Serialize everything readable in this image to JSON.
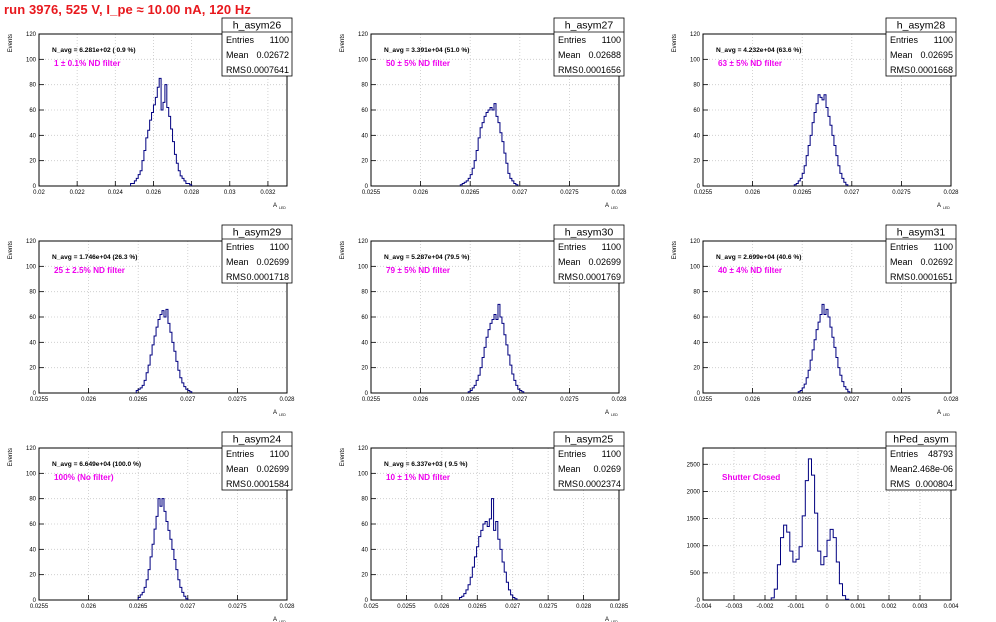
{
  "run_title": "run 3976,   525 V, I_pe ≈ 10.00 nA, 120 Hz",
  "stats_labels": {
    "entries": "Entries",
    "mean": "Mean",
    "rms": "RMS"
  },
  "colors": {
    "title": "#e8181d",
    "annotation": "#ee00ee",
    "histogram": "#000080",
    "grid": "#c8c8c8",
    "axis": "#000000"
  },
  "chart_data": [
    {
      "type": "histogram",
      "name": "h_asym26",
      "navg": "N_avg = 6.281e+02 ( 0.9 %)",
      "filter": "1 ± 0.1% ND filter",
      "entries": "1100",
      "mean": "0.02672",
      "rms": "0.0007641",
      "ylabel": "Events",
      "xlabel": "A",
      "xlabel_sub": "LED",
      "xlim": [
        0.02,
        0.033
      ],
      "ylim": [
        0,
        120
      ],
      "xticks": [
        0.02,
        0.022,
        0.024,
        0.026,
        0.028,
        0.03,
        0.032
      ],
      "xticklabels": [
        "0.02",
        "0.022",
        "0.024",
        "0.026",
        "0.028",
        "0.03",
        "0.032"
      ],
      "yticks": [
        0,
        20,
        40,
        60,
        80,
        100,
        120
      ],
      "x_start": 0.0248,
      "bin_width": 0.0001,
      "counts": [
        2,
        2,
        4,
        6,
        9,
        12,
        20,
        28,
        38,
        44,
        52,
        58,
        64,
        70,
        78,
        85,
        60,
        66,
        80,
        62,
        55,
        45,
        35,
        25,
        18,
        12,
        8,
        6,
        4,
        2,
        2,
        1
      ]
    },
    {
      "type": "histogram",
      "name": "h_asym27",
      "navg": "N_avg = 3.391e+04 (51.0 %)",
      "filter": "50 ± 5% ND filter",
      "entries": "1100",
      "mean": "0.02688",
      "rms": "0.0001656",
      "ylabel": "Events",
      "xlabel": "A",
      "xlabel_sub": "LED",
      "xlim": [
        0.0255,
        0.028
      ],
      "ylim": [
        0,
        120
      ],
      "xticks": [
        0.0255,
        0.026,
        0.0265,
        0.027,
        0.0275,
        0.028
      ],
      "xticklabels": [
        "0.0255",
        "0.026",
        "0.0265",
        "0.027",
        "0.0275",
        "0.028"
      ],
      "yticks": [
        0,
        20,
        40,
        60,
        80,
        100,
        120
      ],
      "x_start": 0.0264,
      "bin_width": 2e-05,
      "counts": [
        1,
        2,
        3,
        4,
        6,
        9,
        14,
        20,
        28,
        38,
        46,
        50,
        55,
        58,
        60,
        62,
        60,
        65,
        55,
        50,
        42,
        35,
        26,
        18,
        10,
        6,
        4,
        2,
        1
      ]
    },
    {
      "type": "histogram",
      "name": "h_asym28",
      "navg": "N_avg = 4.232e+04 (63.6 %)",
      "filter": "63 ± 5% ND filter",
      "entries": "1100",
      "mean": "0.02695",
      "rms": "0.0001668",
      "ylabel": "Events",
      "xlabel": "A",
      "xlabel_sub": "LED",
      "xlim": [
        0.0255,
        0.028
      ],
      "ylim": [
        0,
        120
      ],
      "xticks": [
        0.0255,
        0.026,
        0.0265,
        0.027,
        0.0275,
        0.028
      ],
      "xticklabels": [
        "0.0255",
        "0.026",
        "0.0265",
        "0.027",
        "0.0275",
        "0.028"
      ],
      "yticks": [
        0,
        20,
        40,
        60,
        80,
        100,
        120
      ],
      "x_start": 0.02642,
      "bin_width": 2e-05,
      "counts": [
        1,
        2,
        4,
        6,
        10,
        16,
        24,
        32,
        40,
        50,
        58,
        65,
        72,
        70,
        68,
        72,
        62,
        55,
        48,
        40,
        32,
        24,
        16,
        10,
        6,
        3,
        1
      ]
    },
    {
      "type": "histogram",
      "name": "h_asym29",
      "navg": "N_avg = 1.746e+04 (26.3 %)",
      "filter": "25 ± 2.5% ND filter",
      "entries": "1100",
      "mean": "0.02699",
      "rms": "0.0001718",
      "ylabel": "Events",
      "xlabel": "A",
      "xlabel_sub": "LED",
      "xlim": [
        0.0255,
        0.028
      ],
      "ylim": [
        0,
        120
      ],
      "xticks": [
        0.0255,
        0.026,
        0.0265,
        0.027,
        0.0275,
        0.028
      ],
      "xticklabels": [
        "0.0255",
        "0.026",
        "0.0265",
        "0.027",
        "0.0275",
        "0.028"
      ],
      "yticks": [
        0,
        20,
        40,
        60,
        80,
        100,
        120
      ],
      "x_start": 0.02648,
      "bin_width": 2e-05,
      "counts": [
        2,
        3,
        4,
        6,
        10,
        16,
        22,
        30,
        38,
        45,
        52,
        58,
        62,
        65,
        60,
        66,
        55,
        48,
        40,
        33,
        25,
        18,
        12,
        8,
        5,
        3,
        2,
        1
      ]
    },
    {
      "type": "histogram",
      "name": "h_asym30",
      "navg": "N_avg = 5.287e+04 (79.5 %)",
      "filter": "79 ± 5% ND filter",
      "entries": "1100",
      "mean": "0.02699",
      "rms": "0.0001769",
      "ylabel": "Events",
      "xlabel": "A",
      "xlabel_sub": "LED",
      "xlim": [
        0.0255,
        0.028
      ],
      "ylim": [
        0,
        120
      ],
      "xticks": [
        0.0255,
        0.026,
        0.0265,
        0.027,
        0.0275,
        0.028
      ],
      "xticklabels": [
        "0.0255",
        "0.026",
        "0.0265",
        "0.027",
        "0.0275",
        "0.028"
      ],
      "yticks": [
        0,
        20,
        40,
        60,
        80,
        100,
        120
      ],
      "x_start": 0.02648,
      "bin_width": 2e-05,
      "counts": [
        1,
        2,
        4,
        6,
        10,
        14,
        20,
        28,
        36,
        44,
        50,
        55,
        58,
        62,
        58,
        70,
        60,
        55,
        46,
        38,
        30,
        22,
        15,
        10,
        6,
        3,
        2,
        1
      ]
    },
    {
      "type": "histogram",
      "name": "h_asym31",
      "navg": "N_avg = 2.699e+04 (40.6 %)",
      "filter": "40 ± 4% ND filter",
      "entries": "1100",
      "mean": "0.02692",
      "rms": "0.0001651",
      "ylabel": "Events",
      "xlabel": "A",
      "xlabel_sub": "LED",
      "xlim": [
        0.0255,
        0.028
      ],
      "ylim": [
        0,
        120
      ],
      "xticks": [
        0.0255,
        0.026,
        0.0265,
        0.027,
        0.0275,
        0.028
      ],
      "xticklabels": [
        "0.0255",
        "0.026",
        "0.0265",
        "0.027",
        "0.0275",
        "0.028"
      ],
      "yticks": [
        0,
        20,
        40,
        60,
        80,
        100,
        120
      ],
      "x_start": 0.02646,
      "bin_width": 2e-05,
      "counts": [
        1,
        2,
        4,
        7,
        12,
        18,
        26,
        34,
        42,
        50,
        56,
        62,
        70,
        62,
        66,
        60,
        52,
        44,
        36,
        28,
        20,
        14,
        9,
        5,
        3,
        1
      ]
    },
    {
      "type": "histogram",
      "name": "h_asym24",
      "navg": "N_avg = 6.649e+04 (100.0 %)",
      "filter": "100% (No filter)",
      "entries": "1100",
      "mean": "0.02699",
      "rms": "0.0001584",
      "ylabel": "Events",
      "xlabel": "A",
      "xlabel_sub": "LED",
      "xlim": [
        0.0255,
        0.028
      ],
      "ylim": [
        0,
        120
      ],
      "xticks": [
        0.0255,
        0.026,
        0.0265,
        0.027,
        0.0275,
        0.028
      ],
      "xticklabels": [
        "0.0255",
        "0.026",
        "0.0265",
        "0.027",
        "0.0275",
        "0.028"
      ],
      "yticks": [
        0,
        20,
        40,
        60,
        80,
        100,
        120
      ],
      "x_start": 0.0265,
      "bin_width": 2e-05,
      "counts": [
        2,
        4,
        6,
        10,
        16,
        24,
        34,
        44,
        56,
        66,
        80,
        74,
        80,
        70,
        62,
        55,
        48,
        40,
        32,
        24,
        16,
        10,
        6,
        3,
        1
      ]
    },
    {
      "type": "histogram",
      "name": "h_asym25",
      "navg": "N_avg = 6.337e+03 ( 9.5 %)",
      "filter": "10 ± 1% ND filter",
      "entries": "1100",
      "mean": "0.0269",
      "rms": "0.0002374",
      "ylabel": "Events",
      "xlabel": "A",
      "xlabel_sub": "LED",
      "xlim": [
        0.025,
        0.0285
      ],
      "ylim": [
        0,
        120
      ],
      "xticks": [
        0.025,
        0.0255,
        0.026,
        0.0265,
        0.027,
        0.0275,
        0.028,
        0.0285
      ],
      "xticklabels": [
        "0.025",
        "0.0255",
        "0.026",
        "0.0265",
        "0.027",
        "0.0275",
        "0.028",
        "0.0285"
      ],
      "yticks": [
        0,
        20,
        40,
        60,
        80,
        100,
        120
      ],
      "x_start": 0.02625,
      "bin_width": 3e-05,
      "counts": [
        2,
        3,
        5,
        8,
        12,
        18,
        26,
        34,
        42,
        50,
        55,
        60,
        62,
        58,
        64,
        80,
        55,
        62,
        48,
        40,
        30,
        22,
        14,
        8,
        4,
        2,
        1
      ]
    },
    {
      "type": "histogram",
      "name": "hPed_asym",
      "navg": "",
      "filter": "Shutter Closed",
      "entries": "48793",
      "mean": "2.468e-06",
      "rms": "0.000804",
      "ylabel": "",
      "xlabel": "",
      "xlabel_sub": "",
      "xlim": [
        -0.004,
        0.004
      ],
      "ylim": [
        0,
        2800
      ],
      "xticks": [
        -0.004,
        -0.003,
        -0.002,
        -0.001,
        0,
        0.001,
        0.002,
        0.003,
        0.004
      ],
      "xticklabels": [
        "-0.004",
        "-0.003",
        "-0.002",
        "-0.001",
        "0",
        "0.001",
        "0.002",
        "0.003",
        "0.004"
      ],
      "yticks": [
        0,
        500,
        1000,
        1500,
        2000,
        2500
      ],
      "x_start": -0.0018,
      "bin_width": 0.0001,
      "counts": [
        40,
        200,
        650,
        1150,
        1380,
        1250,
        900,
        700,
        750,
        980,
        1550,
        2200,
        2600,
        2300,
        1600,
        900,
        650,
        800,
        1100,
        1300,
        1150,
        700,
        300,
        80,
        15
      ]
    }
  ]
}
